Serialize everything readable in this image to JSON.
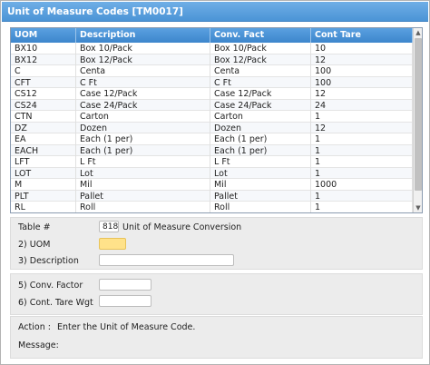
{
  "window": {
    "title": "Unit of Measure Codes [TM0017]"
  },
  "grid": {
    "columns": [
      "UOM",
      "Description",
      "Conv. Fact",
      "Cont Tare"
    ],
    "rows": [
      [
        "BX10",
        "Box 10/Pack",
        "Box 10/Pack",
        "10"
      ],
      [
        "BX12",
        "Box 12/Pack",
        "Box 12/Pack",
        "12"
      ],
      [
        "C",
        "Centa",
        "Centa",
        "100"
      ],
      [
        "CFT",
        "C Ft",
        "C Ft",
        "100"
      ],
      [
        "CS12",
        "Case 12/Pack",
        "Case 12/Pack",
        "12"
      ],
      [
        "CS24",
        "Case 24/Pack",
        "Case 24/Pack",
        "24"
      ],
      [
        "CTN",
        "Carton",
        "Carton",
        "1"
      ],
      [
        "DZ",
        "Dozen",
        "Dozen",
        "12"
      ],
      [
        "EA",
        "Each (1 per)",
        "Each (1 per)",
        "1"
      ],
      [
        "EACH",
        "Each (1 per)",
        "Each (1 per)",
        "1"
      ],
      [
        "LFT",
        "L Ft",
        "L Ft",
        "1"
      ],
      [
        "LOT",
        "Lot",
        "Lot",
        "1"
      ],
      [
        "M",
        "Mil",
        "Mil",
        "1000"
      ],
      [
        "PLT",
        "Pallet",
        "Pallet",
        "1"
      ],
      [
        "RL",
        "Roll",
        "Roll",
        "1"
      ]
    ]
  },
  "form": {
    "table_label": "Table #",
    "table_number": "818",
    "table_desc": "Unit of Measure Conversion",
    "uom_label": "2) UOM",
    "uom_value": "",
    "description_label": "3) Description",
    "description_value": "",
    "conv_factor_label": "5) Conv. Factor",
    "conv_factor_value": "",
    "cont_tare_label": "6) Cont. Tare Wgt",
    "cont_tare_value": ""
  },
  "status": {
    "action_label": "Action :",
    "action_text": "Enter the Unit of Measure Code.",
    "message_label": "Message:",
    "message_text": ""
  },
  "colors": {
    "titlebar": "#4b94d6",
    "grid_header": "#3d86cc",
    "focused_input": "#ffe28a"
  }
}
